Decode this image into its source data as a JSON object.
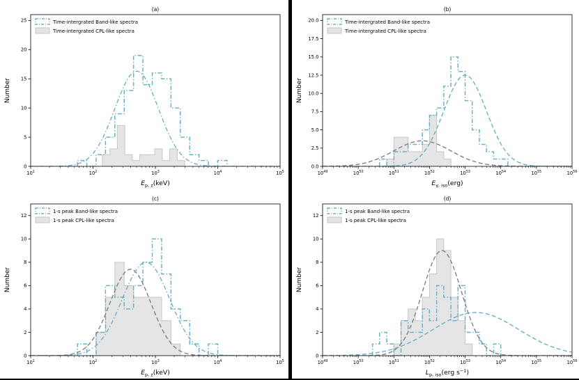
{
  "figure": {
    "background": "#ffffff",
    "divider_color": "#000000"
  },
  "colors": {
    "band": "#6cb0c6",
    "cpl_fill": "#e3e3e3",
    "cpl_edge": "#c6c6c6",
    "gray_curve": "#808080",
    "axis": "#000000"
  },
  "chart_data": [
    {
      "id": "a",
      "type": "histogram",
      "title": "(a)",
      "ylabel": "Number",
      "xlabel_segments": [
        {
          "t": "E",
          "s": "var"
        },
        {
          "t": "p, z",
          "s": "sub"
        },
        {
          "t": "(keV)",
          "s": "norm"
        }
      ],
      "x_exp_min": 1,
      "x_exp_max": 5,
      "xticks_exp": [
        1,
        2,
        3,
        4,
        5
      ],
      "ymax": 26,
      "yticks": [
        0,
        5,
        10,
        15,
        20,
        25
      ],
      "ytick_labels": [
        "0",
        "5",
        "10",
        "15",
        "20",
        "25"
      ],
      "legend": [
        {
          "label": "Time-intergrated Band-like spectra",
          "swatch": "band"
        },
        {
          "label": "Time-intergrated CPL-like spectra",
          "swatch": "cpl"
        }
      ],
      "cpl_hist": {
        "bin_start_exp": 2.15,
        "bin_width_exp": 0.12,
        "counts": [
          2,
          3,
          7,
          2,
          1,
          2,
          2,
          3,
          1,
          3,
          1
        ]
      },
      "band_hist": {
        "bin_start_exp": 1.75,
        "bin_width_exp": 0.15,
        "counts": [
          1,
          0,
          2,
          5,
          9,
          13,
          19,
          14,
          16,
          15,
          10,
          5,
          2,
          1,
          0,
          1
        ]
      },
      "curves": [
        {
          "color": "band",
          "dash": "dashdot",
          "amp": 16.3,
          "mu_exp": 2.7,
          "sigma_exp": 0.35
        }
      ]
    },
    {
      "id": "b",
      "type": "histogram",
      "title": "(b)",
      "ylabel": "Number",
      "xlabel_segments": [
        {
          "t": "E",
          "s": "var"
        },
        {
          "t": "γ, iso",
          "s": "sub"
        },
        {
          "t": "(erg)",
          "s": "norm"
        }
      ],
      "x_exp_min": 49,
      "x_exp_max": 56,
      "xticks_exp": [
        49,
        50,
        51,
        52,
        53,
        54,
        55,
        56
      ],
      "ymax": 20.8,
      "yticks": [
        0,
        2.5,
        5,
        7.5,
        10,
        12.5,
        15,
        17.5,
        20
      ],
      "ytick_labels": [
        "0.0",
        "2.5",
        "5.0",
        "7.5",
        "10.0",
        "12.5",
        "15.0",
        "17.5",
        "20.0"
      ],
      "legend": [
        {
          "label": "Time-intergrated Band-like spectra",
          "swatch": "band"
        },
        {
          "label": "Time-intergrated CPL-like spectra",
          "swatch": "cpl"
        }
      ],
      "cpl_hist": {
        "bin_start_exp": 50.8,
        "bin_width_exp": 0.2,
        "counts": [
          1,
          4,
          4,
          2,
          2,
          3,
          7,
          2,
          1
        ]
      },
      "band_hist": {
        "bin_start_exp": 50.6,
        "bin_width_exp": 0.2,
        "counts": [
          1,
          0,
          2,
          2,
          3,
          3,
          5,
          7,
          8,
          11,
          15,
          13,
          9,
          5,
          3,
          2,
          1,
          1
        ]
      },
      "curves": [
        {
          "color": "gray",
          "dash": "dashed",
          "amp": 3.5,
          "mu_exp": 51.8,
          "sigma_exp": 0.8
        },
        {
          "color": "band",
          "dash": "dashed",
          "amp": 12.5,
          "mu_exp": 53.0,
          "sigma_exp": 0.6
        }
      ]
    },
    {
      "id": "c",
      "type": "histogram",
      "title": "(c)",
      "ylabel": "Number",
      "xlabel_segments": [
        {
          "t": "E",
          "s": "var"
        },
        {
          "t": "p, z",
          "s": "sub"
        },
        {
          "t": "(keV)",
          "s": "norm"
        }
      ],
      "x_exp_min": 1,
      "x_exp_max": 5,
      "xticks_exp": [
        1,
        2,
        3,
        4,
        5
      ],
      "ymax": 13,
      "yticks": [
        0,
        2,
        4,
        6,
        8,
        10,
        12
      ],
      "ytick_labels": [
        "0",
        "2",
        "4",
        "6",
        "8",
        "10",
        "12"
      ],
      "legend": [
        {
          "label": "1-s peak Band-like spectra",
          "swatch": "band"
        },
        {
          "label": "1-s peak CPL-like spectra",
          "swatch": "cpl"
        }
      ],
      "cpl_hist": {
        "bin_start_exp": 2.05,
        "bin_width_exp": 0.15,
        "counts": [
          2,
          5,
          8,
          6,
          5,
          5,
          5,
          3,
          1
        ]
      },
      "band_hist": {
        "bin_start_exp": 1.75,
        "bin_width_exp": 0.15,
        "counts": [
          1,
          0,
          2,
          6,
          5,
          4,
          6,
          8,
          10,
          7,
          4,
          3,
          1,
          0,
          1
        ]
      },
      "curves": [
        {
          "color": "gray",
          "dash": "dashed",
          "amp": 7.4,
          "mu_exp": 2.6,
          "sigma_exp": 0.33
        },
        {
          "color": "band",
          "dash": "dashdot",
          "amp": 8.0,
          "mu_exp": 2.85,
          "sigma_exp": 0.38
        }
      ]
    },
    {
      "id": "d",
      "type": "histogram",
      "title": "(d)",
      "ylabel": "Number",
      "xlabel_segments": [
        {
          "t": "L",
          "s": "var"
        },
        {
          "t": "p, iso",
          "s": "sub"
        },
        {
          "t": "(erg s",
          "s": "norm"
        },
        {
          "t": "−1",
          "s": "sup"
        },
        {
          "t": ")",
          "s": "norm"
        }
      ],
      "x_exp_min": 49,
      "x_exp_max": 56,
      "xticks_exp": [
        49,
        50,
        51,
        52,
        53,
        54,
        55,
        56
      ],
      "ymax": 13,
      "yticks": [
        0,
        2,
        4,
        6,
        8,
        10,
        12
      ],
      "ytick_labels": [
        "0",
        "2",
        "4",
        "6",
        "8",
        "10",
        "12"
      ],
      "legend": [
        {
          "label": "1-s peak Band-like spectra",
          "swatch": "band"
        },
        {
          "label": "1-s peak CPL-like spectra",
          "swatch": "cpl"
        }
      ],
      "cpl_hist": {
        "bin_start_exp": 51.0,
        "bin_width_exp": 0.2,
        "counts": [
          1,
          3,
          4,
          3,
          5,
          7,
          10,
          9,
          5,
          3,
          1
        ]
      },
      "band_hist": {
        "bin_start_exp": 50.4,
        "bin_width_exp": 0.2,
        "counts": [
          1,
          2,
          1,
          0,
          3,
          2,
          2,
          4,
          3,
          6,
          5,
          3,
          6,
          2,
          2,
          1,
          0,
          1
        ]
      },
      "curves": [
        {
          "color": "gray",
          "dash": "dashed",
          "amp": 9.0,
          "mu_exp": 52.35,
          "sigma_exp": 0.55
        },
        {
          "color": "band",
          "dash": "dashed",
          "amp": 3.7,
          "mu_exp": 53.3,
          "sigma_exp": 1.2
        }
      ]
    }
  ]
}
